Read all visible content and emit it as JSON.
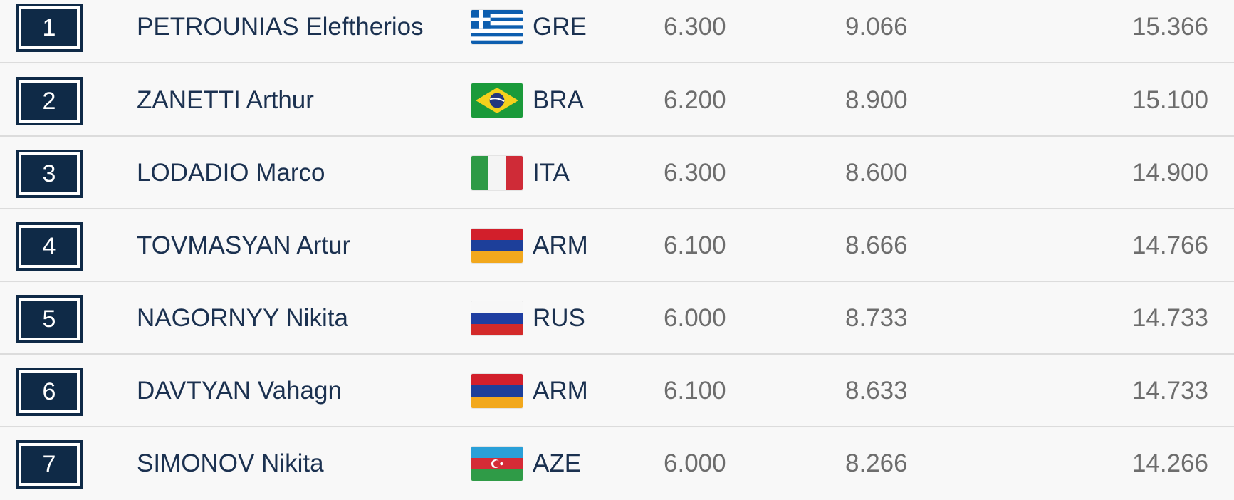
{
  "results": [
    {
      "rank": "1",
      "name": "PETROUNIAS Eleftherios",
      "flag": "gre",
      "nation": "GRE",
      "d": "6.300",
      "e": "9.066",
      "total": "15.366"
    },
    {
      "rank": "2",
      "name": "ZANETTI Arthur",
      "flag": "bra",
      "nation": "BRA",
      "d": "6.200",
      "e": "8.900",
      "total": "15.100"
    },
    {
      "rank": "3",
      "name": "LODADIO Marco",
      "flag": "ita",
      "nation": "ITA",
      "d": "6.300",
      "e": "8.600",
      "total": "14.900"
    },
    {
      "rank": "4",
      "name": "TOVMASYAN Artur",
      "flag": "arm",
      "nation": "ARM",
      "d": "6.100",
      "e": "8.666",
      "total": "14.766"
    },
    {
      "rank": "5",
      "name": "NAGORNYY Nikita",
      "flag": "rus",
      "nation": "RUS",
      "d": "6.000",
      "e": "8.733",
      "total": "14.733"
    },
    {
      "rank": "6",
      "name": "DAVTYAN Vahagn",
      "flag": "arm",
      "nation": "ARM",
      "d": "6.100",
      "e": "8.633",
      "total": "14.733"
    },
    {
      "rank": "7",
      "name": "SIMONOV Nikita",
      "flag": "aze",
      "nation": "AZE",
      "d": "6.000",
      "e": "8.266",
      "total": "14.266"
    }
  ],
  "colors": {
    "rank_badge": "#0f2a47",
    "name_text": "#1b3150",
    "score_text": "#6d6d6d",
    "row_divider": "#dcdcdc"
  }
}
